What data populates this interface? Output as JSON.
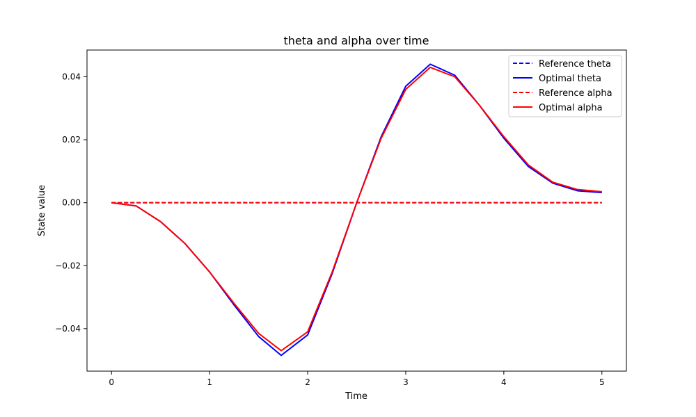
{
  "chart_data": {
    "type": "line",
    "title": "theta and alpha over time",
    "xlabel": "Time",
    "ylabel": "State value",
    "xlim": [
      -0.25,
      5.25
    ],
    "ylim": [
      -0.0535,
      0.0485
    ],
    "xticks": [
      0,
      1,
      2,
      3,
      4,
      5
    ],
    "xtick_labels": [
      "0",
      "1",
      "2",
      "3",
      "4",
      "5"
    ],
    "yticks": [
      -0.04,
      -0.02,
      0.0,
      0.02,
      0.04
    ],
    "ytick_labels": [
      "−0.04",
      "−0.02",
      "0.00",
      "0.02",
      "0.04"
    ],
    "grid": false,
    "legend_position": "top-right",
    "series": [
      {
        "name": "Reference theta",
        "color": "#0000ff",
        "style": "dashed",
        "x": [
          0,
          5
        ],
        "y": [
          0.0,
          0.0
        ]
      },
      {
        "name": "Optimal theta",
        "color": "#0000ff",
        "style": "solid",
        "x": [
          0,
          0.25,
          0.5,
          0.75,
          1.0,
          1.25,
          1.5,
          1.73,
          2.0,
          2.25,
          2.5,
          2.75,
          3.0,
          3.25,
          3.5,
          3.75,
          4.0,
          4.25,
          4.5,
          4.75,
          5.0
        ],
        "y": [
          0.0,
          -0.001,
          -0.006,
          -0.013,
          -0.022,
          -0.0325,
          -0.0425,
          -0.0485,
          -0.042,
          -0.0225,
          0.0,
          0.021,
          0.037,
          0.044,
          0.0405,
          0.031,
          0.0205,
          0.0115,
          0.0062,
          0.0038,
          0.0032
        ]
      },
      {
        "name": "Reference alpha",
        "color": "#ff0000",
        "style": "dashed",
        "x": [
          0,
          5
        ],
        "y": [
          0.0,
          0.0
        ]
      },
      {
        "name": "Optimal alpha",
        "color": "#ff0000",
        "style": "solid",
        "x": [
          0,
          0.25,
          0.5,
          0.75,
          1.0,
          1.25,
          1.5,
          1.73,
          2.0,
          2.25,
          2.5,
          2.75,
          3.0,
          3.25,
          3.5,
          3.75,
          4.0,
          4.25,
          4.5,
          4.75,
          5.0
        ],
        "y": [
          0.0,
          -0.001,
          -0.006,
          -0.013,
          -0.022,
          -0.032,
          -0.0415,
          -0.047,
          -0.041,
          -0.022,
          0.0,
          0.0205,
          0.036,
          0.043,
          0.04,
          0.031,
          0.021,
          0.012,
          0.0065,
          0.0042,
          0.0035
        ]
      }
    ]
  }
}
